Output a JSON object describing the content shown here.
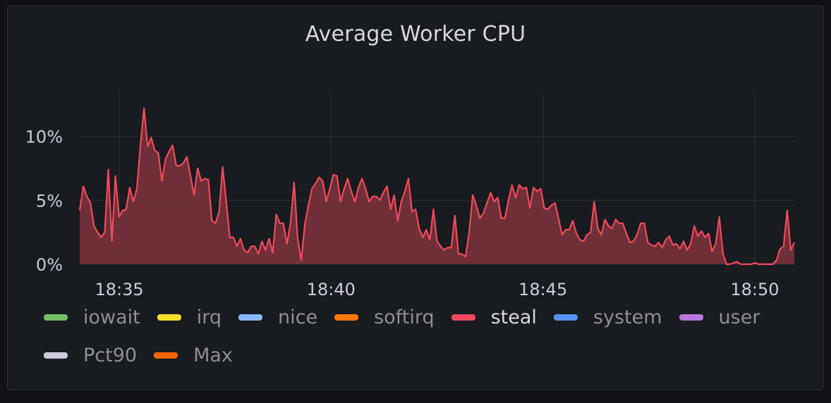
{
  "panel": {
    "title": "Average Worker CPU"
  },
  "colors": {
    "background": "#111217",
    "panel": "#181b1f",
    "grid": "#2a2d33",
    "series_line": "#f2495c",
    "series_fill": "#73303a"
  },
  "chart_data": {
    "type": "area",
    "title": "Average Worker CPU",
    "xlabel": "",
    "ylabel": "",
    "x_ticks": [
      "18:35",
      "18:40",
      "18:45",
      "18:50"
    ],
    "x_tick_minutes": [
      35,
      40,
      45,
      50
    ],
    "y_ticks": [
      "0%",
      "5%",
      "10%"
    ],
    "y_tick_values": [
      0,
      5,
      10
    ],
    "ylim": [
      0,
      13.5
    ],
    "xlim_minutes": [
      34.05,
      50.95
    ],
    "grid": true,
    "legend_position": "bottom",
    "series": [
      {
        "name": "steal",
        "unit": "%",
        "x_start": "18:34:04",
        "x_end": "18:50:56",
        "values": [
          4.2,
          6.1,
          5.3,
          4.8,
          3.0,
          2.5,
          2.1,
          2.5,
          7.4,
          1.8,
          6.9,
          3.7,
          4.2,
          4.3,
          6.0,
          4.9,
          5.9,
          9.3,
          12.2,
          9.2,
          9.9,
          8.9,
          8.7,
          6.5,
          8.2,
          8.8,
          9.3,
          7.7,
          7.7,
          7.9,
          8.4,
          6.9,
          5.4,
          7.5,
          6.5,
          6.7,
          6.6,
          3.4,
          3.2,
          4.1,
          7.6,
          4.9,
          2.1,
          2.1,
          1.4,
          2.0,
          1.1,
          0.9,
          1.4,
          1.4,
          0.8,
          1.8,
          1.1,
          2.0,
          0.9,
          3.9,
          3.2,
          3.2,
          1.6,
          3.2,
          6.4,
          2.0,
          0.3,
          3.1,
          4.6,
          5.9,
          6.3,
          6.8,
          6.5,
          4.9,
          5.9,
          7.0,
          6.9,
          4.9,
          5.9,
          6.7,
          5.7,
          4.9,
          6.0,
          6.7,
          5.9,
          4.9,
          5.3,
          5.3,
          5.0,
          5.6,
          6.1,
          4.3,
          5.4,
          3.4,
          4.9,
          5.7,
          6.7,
          4.1,
          4.3,
          2.8,
          2.1,
          2.7,
          1.9,
          4.3,
          1.8,
          1.4,
          1.1,
          1.3,
          1.3,
          3.8,
          0.8,
          0.8,
          0.6,
          2.5,
          5.4,
          4.6,
          3.6,
          4.0,
          4.8,
          5.6,
          4.9,
          5.2,
          3.6,
          3.6,
          5.0,
          6.2,
          5.2,
          6.2,
          5.9,
          6.0,
          4.4,
          6.0,
          5.7,
          5.9,
          4.4,
          4.3,
          4.6,
          4.8,
          3.6,
          2.3,
          2.7,
          2.7,
          3.4,
          2.4,
          1.9,
          1.8,
          2.3,
          2.5,
          4.9,
          2.8,
          2.3,
          3.5,
          3.0,
          2.8,
          3.5,
          3.2,
          3.2,
          2.4,
          1.7,
          1.8,
          2.3,
          3.2,
          3.2,
          1.7,
          1.5,
          1.4,
          1.7,
          1.3,
          1.9,
          2.2,
          1.5,
          1.6,
          1.2,
          1.8,
          1.1,
          1.6,
          3.0,
          2.2,
          2.6,
          2.1,
          2.4,
          1.0,
          1.6,
          3.7,
          0.9,
          0.0,
          0.0,
          0.1,
          0.2,
          0.0,
          0.0,
          0.0,
          0.0,
          0.1,
          0.0,
          0.0,
          0.0,
          0.0,
          0.0,
          0.3,
          1.2,
          1.4,
          4.2,
          1.1,
          1.7
        ]
      }
    ]
  },
  "legend": {
    "items": [
      {
        "label": "iowait",
        "color": "#73bf69",
        "active": false
      },
      {
        "label": "irq",
        "color": "#fade2a",
        "active": false
      },
      {
        "label": "nice",
        "color": "#8ab8ff",
        "active": false
      },
      {
        "label": "softirq",
        "color": "#ff780a",
        "active": false
      },
      {
        "label": "steal",
        "color": "#f2495c",
        "active": true
      },
      {
        "label": "system",
        "color": "#5794f2",
        "active": false
      },
      {
        "label": "user",
        "color": "#b877d9",
        "active": false
      },
      {
        "label": "Pct90",
        "color": "#ccccdc",
        "active": false
      },
      {
        "label": "Max",
        "color": "#fa6400",
        "active": false
      }
    ]
  }
}
